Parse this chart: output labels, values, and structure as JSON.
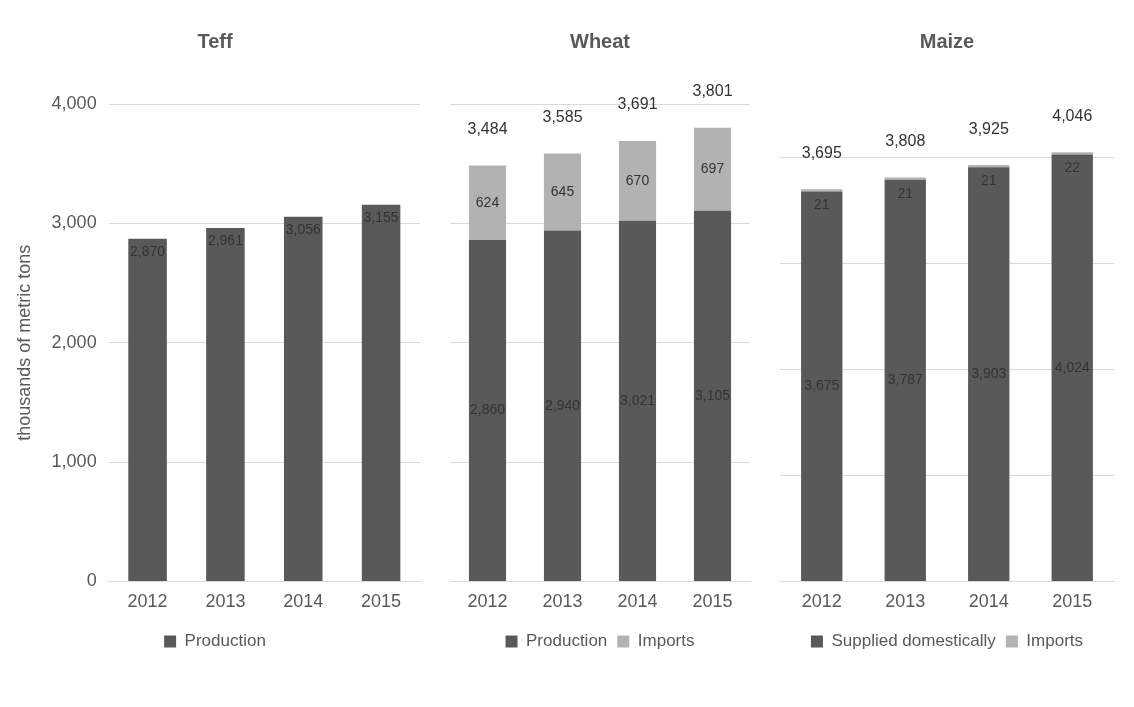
{
  "chart_data": [
    {
      "type": "bar",
      "title": "Teff",
      "ylabel": "thousands of metric tons",
      "categories": [
        "2012",
        "2013",
        "2014",
        "2015"
      ],
      "series": [
        {
          "name": "Production",
          "color": "#595959",
          "values": [
            2870,
            2961,
            3056,
            3155
          ],
          "value_labels": [
            "2,870",
            "2,961",
            "3,056",
            "3,155"
          ]
        }
      ],
      "ylim": [
        0,
        4000
      ],
      "yticks": [
        0,
        {
          "value": 1000,
          "label": "1,000"
        },
        {
          "value": 2000,
          "label": "2,000"
        },
        {
          "value": 3000,
          "label": "3,000"
        },
        {
          "value": 4000,
          "label": "4,000"
        }
      ],
      "grid": "y",
      "legend": "bottom"
    },
    {
      "type": "bar",
      "title": "Wheat",
      "categories": [
        "2012",
        "2013",
        "2014",
        "2015"
      ],
      "stacked": true,
      "series": [
        {
          "name": "Production",
          "color": "#595959",
          "values": [
            2860,
            2940,
            3021,
            3105
          ],
          "value_labels": [
            "2,860",
            "2,940",
            "3,021",
            "3,105"
          ]
        },
        {
          "name": "Imports",
          "color": "#b2b2b2",
          "values": [
            624,
            645,
            670,
            697
          ],
          "value_labels": [
            "624",
            "645",
            "670",
            "697"
          ]
        }
      ],
      "totals": [
        "3,484",
        "3,585",
        "3,691",
        "3,801"
      ],
      "ylim": [
        0,
        4000
      ],
      "yticks": [
        0,
        1000,
        2000,
        3000,
        4000
      ],
      "tick_labels": "x",
      "grid": "y",
      "legend": "bottom"
    },
    {
      "type": "bar",
      "title": "Maize",
      "categories": [
        "2012",
        "2013",
        "2014",
        "2015"
      ],
      "stacked": true,
      "series": [
        {
          "name": "Supplied domestically",
          "color": "#595959",
          "values": [
            3675,
            3787,
            3903,
            4024
          ],
          "value_labels": [
            "3,675",
            "3,787",
            "3,903",
            "4,024"
          ]
        },
        {
          "name": "Imports",
          "color": "#b2b2b2",
          "values": [
            21,
            21,
            21,
            22
          ],
          "value_labels": [
            "21",
            "21",
            "21",
            "22"
          ]
        }
      ],
      "totals": [
        "3,695",
        "3,808",
        "3,925",
        "4,046"
      ],
      "yticks": [
        0,
        1000,
        2000,
        3000,
        4000
      ],
      "tick_labels": "x",
      "grid": "y",
      "legend": "bottom"
    }
  ]
}
